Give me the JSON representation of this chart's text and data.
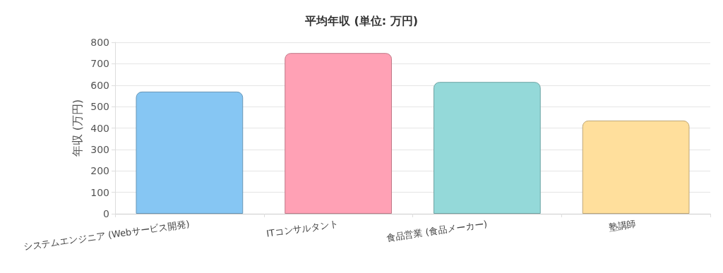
{
  "chart_data": {
    "type": "bar",
    "title": "平均年収 (単位: 万円)",
    "ylabel": "年収 (万円)",
    "categories": [
      "システムエンジニア (Webサービス開発)",
      "ITコンサルタント",
      "食品営業 (食品メーカー)",
      "塾講師"
    ],
    "values": [
      570,
      750,
      615,
      435
    ],
    "colors": [
      "#86c6f3",
      "#ffa1b5",
      "#94d9d9",
      "#ffdf9c"
    ],
    "ylim": [
      0,
      800
    ],
    "yticks": [
      0,
      100,
      200,
      300,
      400,
      500,
      600,
      700,
      800
    ],
    "grid": "y"
  }
}
